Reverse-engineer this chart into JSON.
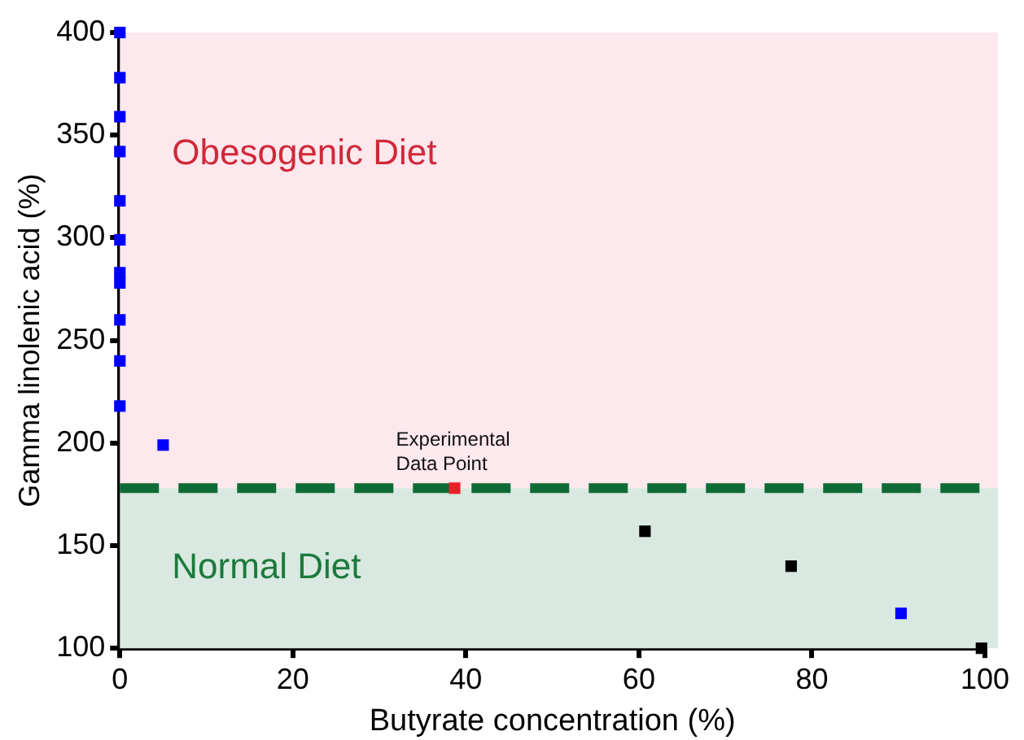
{
  "chart_data": {
    "type": "scatter",
    "xlabel": "Butyrate concentration (%)",
    "ylabel": "Gamma linolenic acid (%)",
    "series": [
      {
        "color": "#0000ff",
        "x": [
          0,
          0,
          0,
          0,
          0,
          0,
          0,
          0,
          0,
          0,
          0,
          5,
          90.3
        ],
        "values": [
          400,
          378,
          359,
          342,
          318,
          299,
          283,
          278,
          260,
          240,
          218,
          199,
          117
        ]
      },
      {
        "color": "#000000",
        "x": [
          60.7,
          77.6,
          99.6
        ],
        "values": [
          157,
          140,
          100
        ]
      },
      {
        "color": "#e8202a",
        "x": [
          38.7
        ],
        "values": [
          178
        ]
      }
    ],
    "xlim": [
      0,
      100
    ],
    "ylim": [
      100,
      400
    ],
    "xticks": [
      0,
      20,
      40,
      60,
      80,
      100
    ],
    "yticks": [
      100,
      150,
      200,
      250,
      300,
      350,
      400
    ],
    "bands": [
      {
        "axis": "y",
        "from": 178,
        "to": 400,
        "label": "Obesogenic Diet",
        "color": "#fde8ee"
      },
      {
        "axis": "y",
        "from": 100,
        "to": 178,
        "label": "Normal Diet",
        "color": "#d9e8e0"
      }
    ],
    "ref_lines": [
      {
        "axis": "y",
        "value": 178,
        "color": "#0e6b35",
        "line_style": "dashed"
      }
    ],
    "annotations": [
      {
        "text": "Experimental Data Point",
        "x": 38.7,
        "y": 178
      }
    ],
    "marker": "square",
    "grid": false,
    "legend": false
  }
}
